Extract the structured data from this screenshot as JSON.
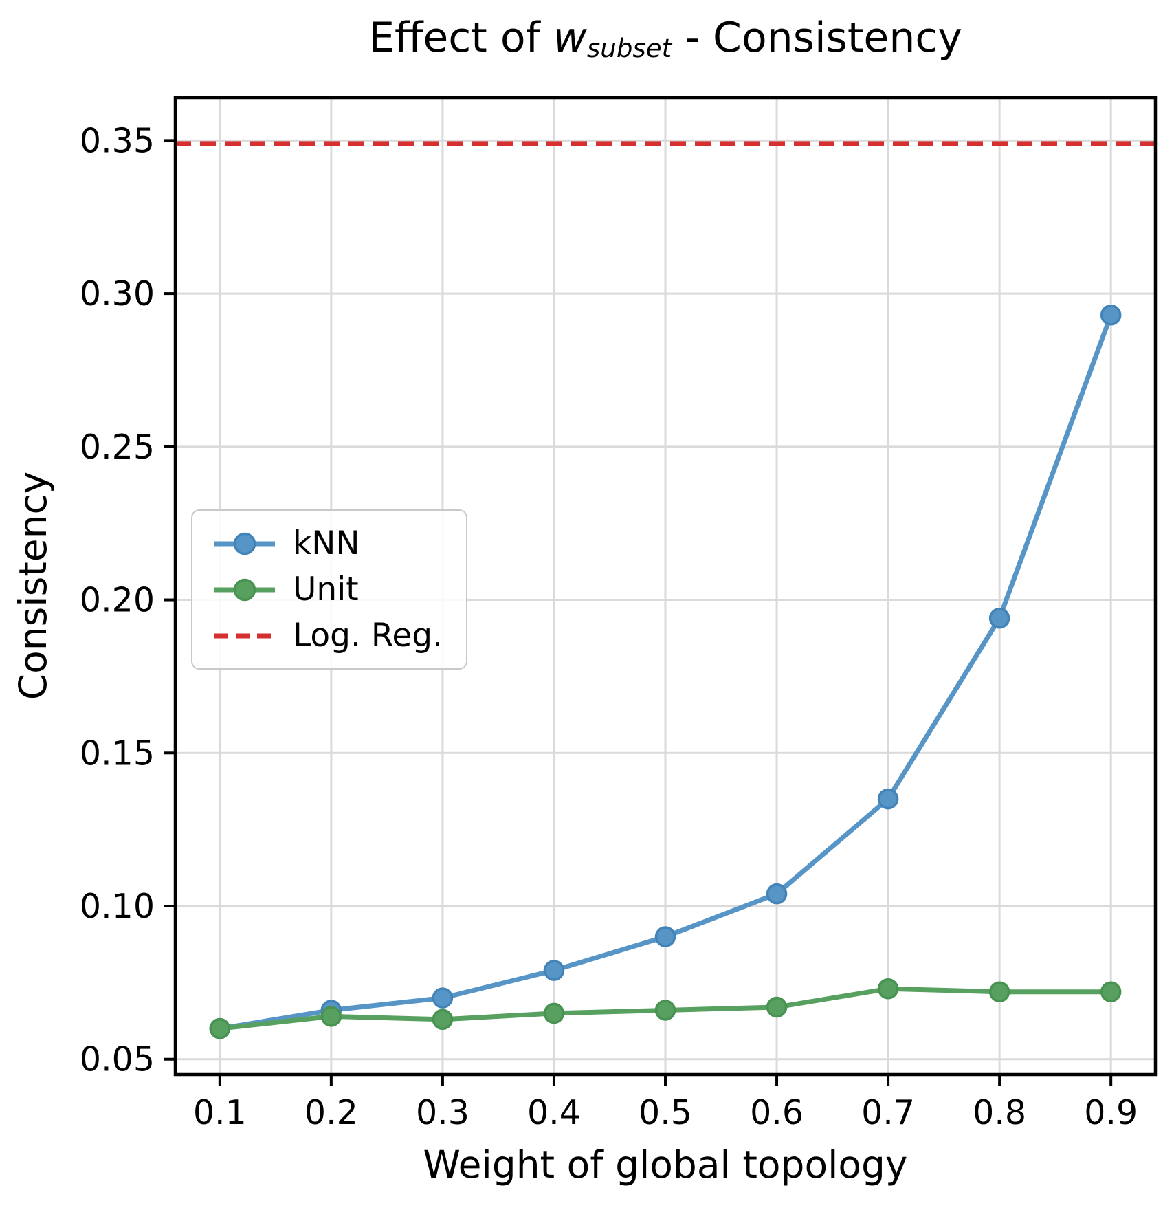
{
  "title": {
    "prefix": "Effect of ",
    "var": "w",
    "var_sub": "subset",
    "suffix": " - Consistency"
  },
  "axes": {
    "xlabel": "Weight of global topology",
    "ylabel": "Consistency",
    "xtick_labels": [
      "0.1",
      "0.2",
      "0.3",
      "0.4",
      "0.5",
      "0.6",
      "0.7",
      "0.8",
      "0.9"
    ],
    "ytick_labels": [
      "0.05",
      "0.10",
      "0.15",
      "0.20",
      "0.25",
      "0.30",
      "0.35"
    ]
  },
  "legend": [
    {
      "label": "kNN",
      "swatch": "line-marker",
      "color": "#5795c7",
      "edge": "#4384b8"
    },
    {
      "label": "Unit",
      "swatch": "line-marker",
      "color": "#57a05f",
      "edge": "#499352"
    },
    {
      "label": "Log. Reg.",
      "swatch": "dashed",
      "color": "#d62f2f",
      "edge": "#d62f2f"
    }
  ],
  "colors": {
    "knn": "#5795c7",
    "knn_edge": "#4384b8",
    "unit": "#57a05f",
    "unit_edge": "#499352",
    "logreg": "#d62f2f",
    "grid": "#dadada",
    "spine": "#000000",
    "background": "#ffffff"
  },
  "chart_data": {
    "type": "line",
    "title": "Effect of w_subset - Consistency",
    "xlabel": "Weight of global topology",
    "ylabel": "Consistency",
    "x": [
      0.1,
      0.2,
      0.3,
      0.4,
      0.5,
      0.6,
      0.7,
      0.8,
      0.9
    ],
    "series": [
      {
        "name": "kNN",
        "kind": "line",
        "color": "#5795c7",
        "edge": "#4384b8",
        "values": [
          0.06,
          0.066,
          0.07,
          0.079,
          0.09,
          0.104,
          0.135,
          0.194,
          0.293
        ]
      },
      {
        "name": "Unit",
        "kind": "line",
        "color": "#57a05f",
        "edge": "#499352",
        "values": [
          0.06,
          0.064,
          0.063,
          0.065,
          0.066,
          0.067,
          0.073,
          0.072,
          0.072
        ]
      },
      {
        "name": "Log. Reg.",
        "kind": "hline",
        "color": "#d62f2f",
        "value": 0.349,
        "style": "dashed"
      }
    ],
    "xlim": [
      0.06,
      0.94
    ],
    "ylim": [
      0.045,
      0.364
    ],
    "grid": true,
    "legend_position": "center-left"
  }
}
